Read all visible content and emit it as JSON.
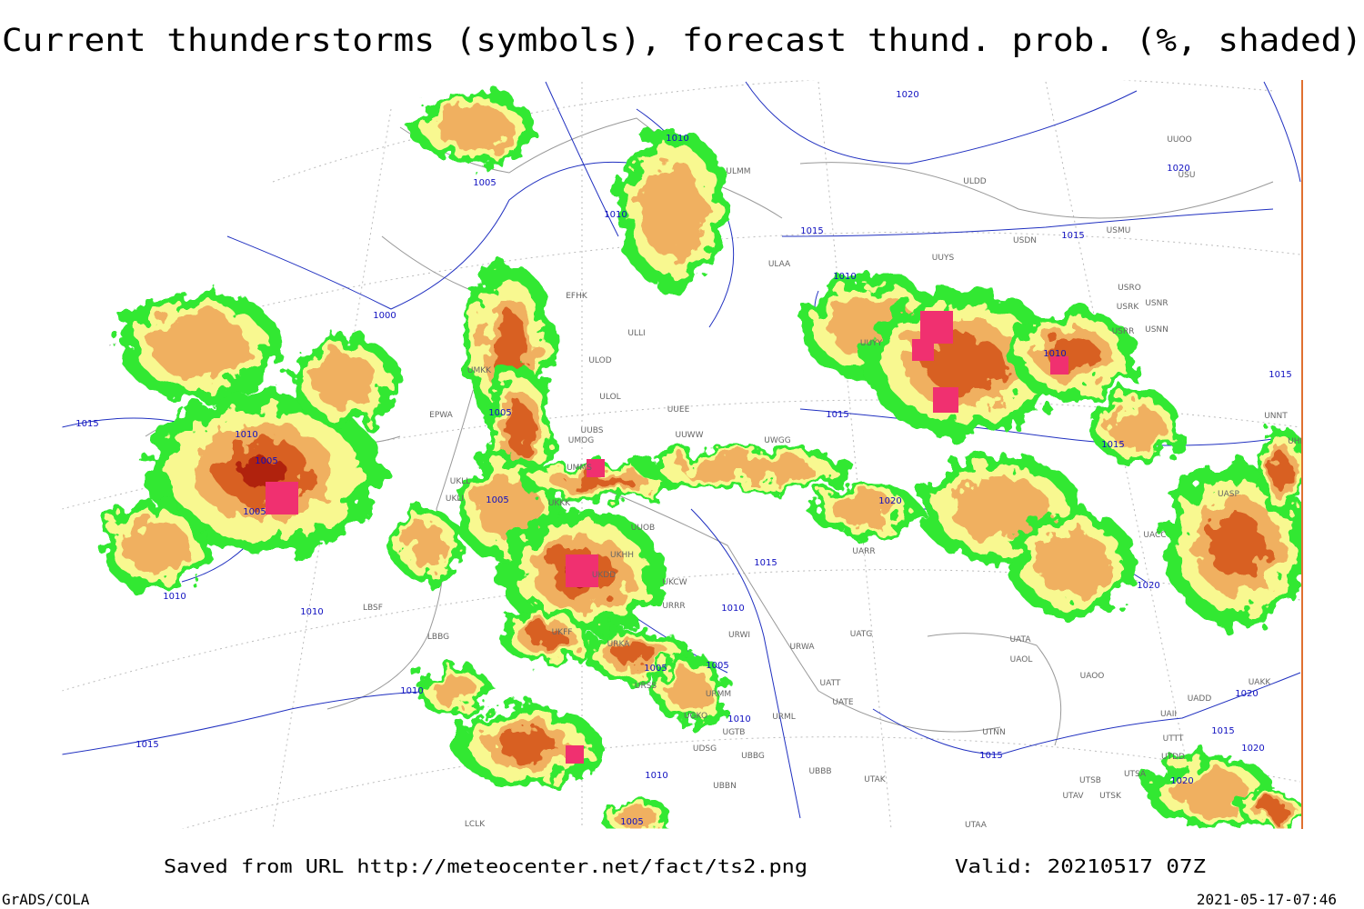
{
  "title": "Current thunderstorms (symbols), forecast thund. prob. (%, shaded)",
  "isobar_labels": [
    "1020",
    "1010",
    "1005",
    "1010",
    "1015",
    "1015",
    "1020",
    "1000",
    "1010",
    "1010",
    "1015",
    "1010",
    "1005",
    "1005",
    "1005",
    "1005",
    "1015",
    "1015",
    "1020",
    "1015",
    "1015",
    "1010",
    "1010",
    "1010",
    "1020",
    "1005",
    "1005",
    "1010",
    "1010",
    "1015",
    "1015",
    "1020",
    "1015",
    "1020",
    "1020",
    "1010",
    "1005"
  ],
  "stations": [
    "UUOO",
    "USU",
    "ULDD",
    "ULMM",
    "ULAA",
    "USDN",
    "USMU",
    "UUYS",
    "USRO",
    "USRK",
    "USNR",
    "USRR",
    "USNN",
    "UUYY",
    "EFHK",
    "ULLI",
    "ULOD",
    "ULOL",
    "UMKK",
    "UUEE",
    "UUWW",
    "UUBS",
    "UMOG",
    "EPWA",
    "UMMS",
    "UKLL",
    "UKLI",
    "UKKK",
    "UUOB",
    "UKHH",
    "UKDD",
    "UKCW",
    "URRR",
    "URWI",
    "URWA",
    "UATG",
    "UATA",
    "UAOL",
    "UAOO",
    "UKFF",
    "URKA",
    "URSS",
    "URMM",
    "URML",
    "UATE",
    "UATT",
    "UGKO",
    "UGTB",
    "UDSG",
    "UBBG",
    "UBBN",
    "UBBB",
    "UTAK",
    "UTNN",
    "UTSA",
    "UTSB",
    "UTAV",
    "UTSK",
    "UTAA",
    "LBSF",
    "LBBG",
    "UAKK",
    "UADD",
    "UAII",
    "UTTT",
    "UTDD",
    "UNNT",
    "UHBB",
    "UASP",
    "UACC",
    "UARR",
    "UWGG",
    "LCLK"
  ],
  "footer": {
    "source": "Saved from URL http://meteocenter.net/fact/ts2.png",
    "valid": "Valid: 20210517 07Z"
  },
  "credit": "GrADS/COLA",
  "timestamp": "2021-05-17-07:46"
}
